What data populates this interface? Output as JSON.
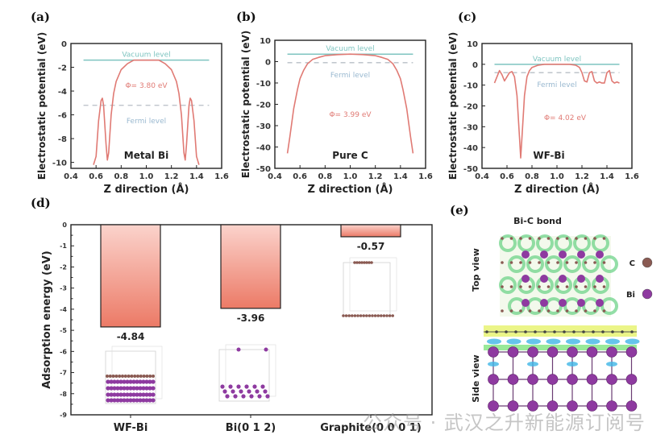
{
  "panels": {
    "a": "(a)",
    "b": "(b)",
    "c": "(c)",
    "d": "(d)",
    "e": "(e)"
  },
  "colors": {
    "curve": "#e07a74",
    "vacuum": "#7ec4c0",
    "fermi": "#b8bfc6",
    "bar_top": "#fbd3cc",
    "bar_bottom": "#ec7a66",
    "bi_atom": "#8e3aa0",
    "c_atom": "#8a5a52"
  },
  "chart_data": [
    {
      "type": "line",
      "panel": "a",
      "title": "Metal Bi",
      "xlabel": "Z direction (Å)",
      "ylabel": "Electrostatic potential (eV)",
      "xlim": [
        0.4,
        1.6
      ],
      "ylim": [
        -10.5,
        0
      ],
      "xticks": [
        "0.4",
        "0.6",
        "0.8",
        "1.0",
        "1.2",
        "1.4",
        "1.6"
      ],
      "yticks": [
        "0",
        "-2",
        "-4",
        "-6",
        "-8",
        "-10"
      ],
      "vacuum_level": -1.4,
      "fermi_level": -5.2,
      "vacuum_label": "Vacuum level",
      "fermi_label": "Fermi level",
      "phi_label": "Φ= 3.80 eV",
      "x": [
        0.58,
        0.6,
        0.62,
        0.64,
        0.65,
        0.66,
        0.68,
        0.69,
        0.7,
        0.72,
        0.74,
        0.76,
        0.8,
        0.85,
        0.9,
        1.0,
        1.1,
        1.15,
        1.2,
        1.24,
        1.26,
        1.28,
        1.3,
        1.31,
        1.32,
        1.34,
        1.35,
        1.36,
        1.38,
        1.4,
        1.42
      ],
      "y": [
        -10.2,
        -9.5,
        -6.5,
        -4.8,
        -4.6,
        -5.2,
        -8.5,
        -9.8,
        -9.2,
        -6.0,
        -4.2,
        -3.2,
        -2.2,
        -1.7,
        -1.4,
        -1.4,
        -1.4,
        -1.7,
        -2.2,
        -3.2,
        -4.2,
        -6.0,
        -9.2,
        -9.8,
        -8.5,
        -5.2,
        -4.6,
        -4.8,
        -6.5,
        -9.5,
        -10.2
      ]
    },
    {
      "type": "line",
      "panel": "b",
      "title": "Pure C",
      "xlabel": "Z direction (Å)",
      "ylabel": "Electrostatic potential (eV)",
      "xlim": [
        0.4,
        1.6
      ],
      "ylim": [
        -50,
        10
      ],
      "xticks": [
        "0.4",
        "0.6",
        "0.8",
        "1.0",
        "1.2",
        "1.4",
        "1.6"
      ],
      "yticks": [
        "10",
        "0",
        "-10",
        "-20",
        "-30",
        "-40",
        "-50"
      ],
      "vacuum_level": 3.5,
      "fermi_level": -0.5,
      "vacuum_label": "Vacuum level",
      "fermi_label": "Fermi level",
      "phi_label": "Φ= 3.99 eV",
      "x": [
        0.5,
        0.52,
        0.55,
        0.58,
        0.6,
        0.63,
        0.66,
        0.7,
        0.75,
        0.8,
        0.9,
        1.0,
        1.1,
        1.2,
        1.25,
        1.3,
        1.34,
        1.37,
        1.4,
        1.42,
        1.45,
        1.48,
        1.5
      ],
      "y": [
        -43,
        -35,
        -22,
        -13,
        -8,
        -4,
        -1,
        1,
        2,
        2.8,
        3.3,
        3.5,
        3.3,
        2.8,
        2,
        1,
        -1,
        -4,
        -8,
        -13,
        -22,
        -35,
        -43
      ]
    },
    {
      "type": "line",
      "panel": "c",
      "title": "WF-Bi",
      "xlabel": "Z direction (Å)",
      "ylabel": "Electrostatic potential (eV)",
      "xlim": [
        0.4,
        1.6
      ],
      "ylim": [
        -50,
        10
      ],
      "xticks": [
        "0.4",
        "0.6",
        "0.8",
        "1.0",
        "1.2",
        "1.4",
        "1.6"
      ],
      "yticks": [
        "10",
        "0",
        "-10",
        "-20",
        "-30",
        "-40",
        "-50"
      ],
      "vacuum_level": 0,
      "fermi_level": -4,
      "vacuum_label": "Vacuum level",
      "fermi_label": "Fermi level",
      "phi_label": "Φ= 4.02 eV",
      "x": [
        0.5,
        0.52,
        0.54,
        0.56,
        0.58,
        0.6,
        0.62,
        0.64,
        0.66,
        0.68,
        0.7,
        0.71,
        0.72,
        0.74,
        0.76,
        0.78,
        0.8,
        0.85,
        0.9,
        1.0,
        1.1,
        1.15,
        1.18,
        1.2,
        1.22,
        1.24,
        1.26,
        1.28,
        1.3,
        1.32,
        1.34,
        1.36,
        1.38,
        1.4,
        1.42,
        1.44,
        1.46,
        1.48,
        1.5
      ],
      "y": [
        -9,
        -6,
        -3,
        -5,
        -8,
        -6,
        -4,
        -3.5,
        -6,
        -15,
        -35,
        -45,
        -35,
        -15,
        -6,
        -3,
        -1.5,
        -0.4,
        0,
        0,
        0,
        -0.4,
        -1.5,
        -4,
        -8,
        -8.5,
        -4,
        -3.5,
        -8,
        -9,
        -8.5,
        -9,
        -9,
        -4,
        -3,
        -8,
        -9,
        -8.5,
        -9
      ]
    },
    {
      "type": "bar",
      "panel": "d",
      "ylabel": "Adsorption energy (eV)",
      "xlabel": "",
      "ylim": [
        -9,
        0
      ],
      "yticks": [
        "0",
        "-1",
        "-2",
        "-3",
        "-4",
        "-5",
        "-6",
        "-7",
        "-8",
        "-9"
      ],
      "categories": [
        "WF-Bi",
        "Bi(0 1 2)",
        "Graphite(0 0 0 1)"
      ],
      "values": [
        -4.84,
        -3.96,
        -0.57
      ],
      "data_labels": [
        "-4.84",
        "-3.96",
        "-0.57"
      ]
    }
  ],
  "panel_e": {
    "title": "Bi-C bond",
    "top_view_label": "Top view",
    "side_view_label": "Side view",
    "legend": [
      {
        "symbol": "C",
        "color": "#8a5a52"
      },
      {
        "symbol": "Bi",
        "color": "#8e3aa0"
      }
    ]
  },
  "watermark": "公众号 · 武汉之升新能源订阅号"
}
